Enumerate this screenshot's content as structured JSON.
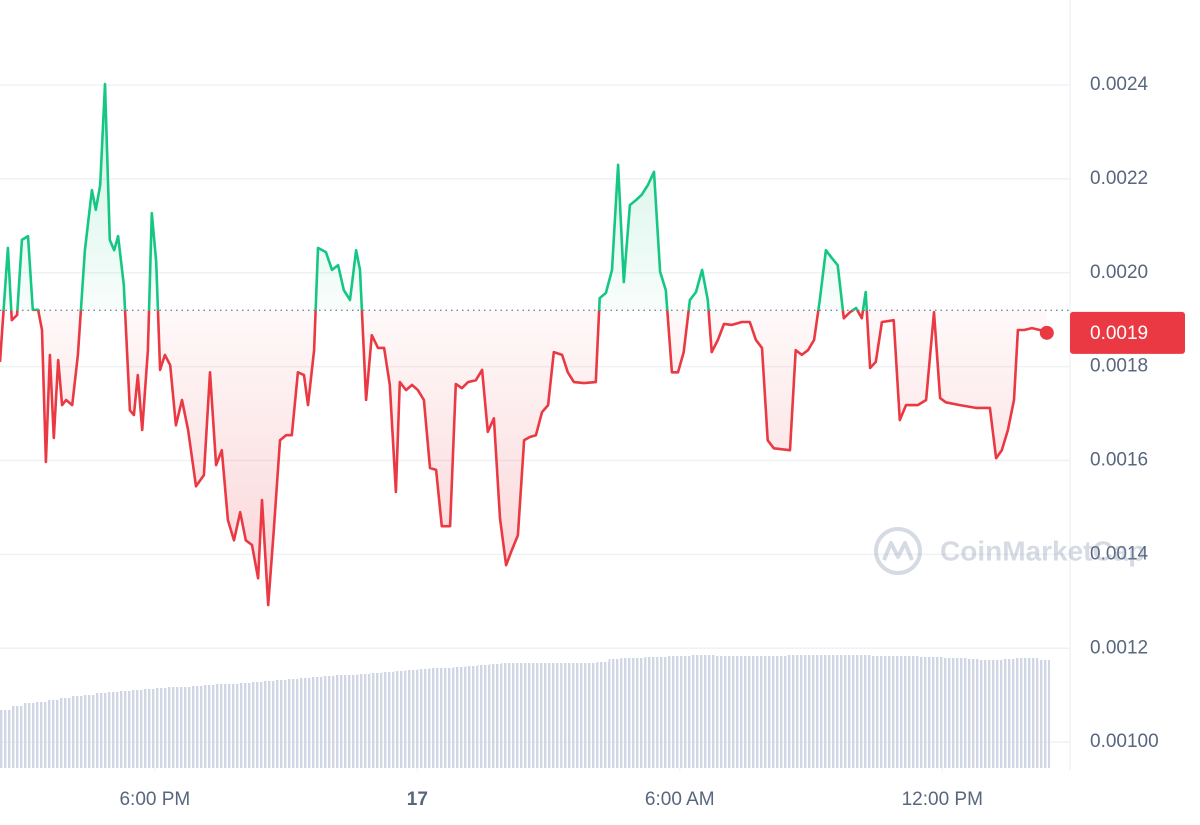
{
  "chart_data": {
    "type": "line",
    "x": [
      14.46,
      14.64,
      14.73,
      14.85,
      14.96,
      15.1,
      15.21,
      15.33,
      15.42,
      15.51,
      15.6,
      15.69,
      15.79,
      15.88,
      15.97,
      16.11,
      16.24,
      16.4,
      16.56,
      16.65,
      16.75,
      16.86,
      16.97,
      17.07,
      17.16,
      17.29,
      17.43,
      17.52,
      17.61,
      17.71,
      17.84,
      17.93,
      18.03,
      18.12,
      18.23,
      18.35,
      18.48,
      18.62,
      18.76,
      18.94,
      19.12,
      19.26,
      19.4,
      19.53,
      19.67,
      19.81,
      19.95,
      20.08,
      20.22,
      20.36,
      20.45,
      20.59,
      20.72,
      20.86,
      21.0,
      21.13,
      21.27,
      21.41,
      21.5,
      21.64,
      21.73,
      21.91,
      22.05,
      22.19,
      22.32,
      22.46,
      22.6,
      22.69,
      22.83,
      22.96,
      23.1,
      23.24,
      23.37,
      23.51,
      23.6,
      23.74,
      23.88,
      24.01,
      24.15,
      24.29,
      24.43,
      24.56,
      24.75,
      24.88,
      25.02,
      25.16,
      25.34,
      25.48,
      25.61,
      25.75,
      25.89,
      26.03,
      26.16,
      26.3,
      26.44,
      26.57,
      26.71,
      26.85,
      26.99,
      27.12,
      27.31,
      27.44,
      27.58,
      27.81,
      28.08,
      28.17,
      28.31,
      28.45,
      28.59,
      28.72,
      28.86,
      29.0,
      29.13,
      29.27,
      29.41,
      29.55,
      29.68,
      29.82,
      29.96,
      30.09,
      30.23,
      30.37,
      30.51,
      30.64,
      30.73,
      30.87,
      31.01,
      31.19,
      31.42,
      31.6,
      31.74,
      31.88,
      32.01,
      32.15,
      32.52,
      32.65,
      32.79,
      32.93,
      33.07,
      33.2,
      33.34,
      33.48,
      33.61,
      33.75,
      33.89,
      34.03,
      34.16,
      34.25,
      34.35,
      34.48,
      34.62,
      34.89,
      35.03,
      35.17,
      35.44,
      35.63,
      35.81,
      35.95,
      36.08,
      36.4,
      36.77,
      37.09,
      37.23,
      37.36,
      37.5,
      37.64,
      37.73,
      37.87,
      38.05,
      38.23,
      38.39
    ],
    "values": [
      0.00181,
      0.002053,
      0.001899,
      0.00191,
      0.00207,
      0.002078,
      0.001921,
      0.001921,
      0.001878,
      0.001597,
      0.001825,
      0.001648,
      0.001814,
      0.001718,
      0.001729,
      0.001718,
      0.001825,
      0.002048,
      0.002176,
      0.002134,
      0.002187,
      0.002402,
      0.00207,
      0.002048,
      0.002078,
      0.001974,
      0.001707,
      0.001697,
      0.001782,
      0.001665,
      0.001835,
      0.002127,
      0.002023,
      0.001793,
      0.001825,
      0.001803,
      0.001675,
      0.001729,
      0.001665,
      0.001545,
      0.001569,
      0.001788,
      0.00159,
      0.001622,
      0.001473,
      0.00143,
      0.00149,
      0.00143,
      0.00142,
      0.001349,
      0.001516,
      0.001292,
      0.001452,
      0.001643,
      0.001654,
      0.001654,
      0.001788,
      0.001782,
      0.001718,
      0.001835,
      0.002053,
      0.002044,
      0.002006,
      0.002016,
      0.001963,
      0.001942,
      0.002048,
      0.002006,
      0.001729,
      0.001867,
      0.00184,
      0.00184,
      0.001761,
      0.001533,
      0.001767,
      0.00175,
      0.001761,
      0.00175,
      0.001729,
      0.001584,
      0.00158,
      0.00146,
      0.00146,
      0.001763,
      0.001754,
      0.001767,
      0.001771,
      0.001793,
      0.001661,
      0.00169,
      0.001477,
      0.001377,
      0.001409,
      0.001441,
      0.001643,
      0.00165,
      0.001654,
      0.001703,
      0.001718,
      0.001831,
      0.001825,
      0.001788,
      0.001767,
      0.001765,
      0.001767,
      0.001946,
      0.001957,
      0.002006,
      0.00223,
      0.00198,
      0.002144,
      0.002155,
      0.002166,
      0.002187,
      0.002215,
      0.002002,
      0.001963,
      0.001788,
      0.001788,
      0.001831,
      0.001942,
      0.001959,
      0.002006,
      0.001942,
      0.001831,
      0.001857,
      0.001891,
      0.001889,
      0.001895,
      0.001895,
      0.001857,
      0.00184,
      0.001643,
      0.001626,
      0.001622,
      0.001835,
      0.001825,
      0.001835,
      0.001857,
      0.001942,
      0.002048,
      0.002031,
      0.002016,
      0.001903,
      0.001916,
      0.001925,
      0.001903,
      0.001959,
      0.001797,
      0.00181,
      0.001895,
      0.001899,
      0.001686,
      0.001718,
      0.001718,
      0.001729,
      0.001916,
      0.001733,
      0.001724,
      0.001718,
      0.001712,
      0.001712,
      0.001605,
      0.001622,
      0.001665,
      0.001729,
      0.001878,
      0.001878,
      0.001882,
      0.001878,
      0.001872
    ],
    "baseline": 0.00192,
    "up_color": "#16c784",
    "down_color": "#ea3943",
    "current_price": "0.0019",
    "xlim": [
      14.46,
      38.92
    ],
    "xticks": [
      {
        "value": 18,
        "label": "6:00 PM"
      },
      {
        "value": 24,
        "label": "17"
      },
      {
        "value": 30,
        "label": "6:00 AM"
      },
      {
        "value": 36,
        "label": "12:00 PM"
      }
    ],
    "ylim": [
      0.000945,
      0.002581
    ],
    "yticks": [
      0.0024,
      0.0022,
      {
        "value": 0.002,
        "label": "0.0020"
      },
      0.0018,
      0.0016,
      0.0014,
      0.0012,
      {
        "value": 0.001,
        "label": "0.00100"
      }
    ],
    "grid": true,
    "volume": {
      "color": "#cfd6e4",
      "values": [
        58,
        62,
        65,
        66,
        68,
        70,
        72,
        73,
        75,
        76,
        77,
        78,
        79,
        80,
        81,
        81,
        82,
        83,
        84,
        84,
        85,
        86,
        87,
        88,
        89,
        90,
        91,
        92,
        93,
        93,
        94,
        95,
        96,
        97,
        98,
        99,
        100,
        100,
        101,
        102,
        103,
        104,
        105,
        105,
        105,
        105,
        105,
        105,
        105,
        105,
        106,
        109,
        110,
        110,
        111,
        111,
        112,
        112,
        113,
        113,
        112,
        112,
        112,
        112,
        112,
        112,
        113,
        113,
        113,
        113,
        113,
        113,
        113,
        112,
        112,
        112,
        112,
        111,
        111,
        110,
        110,
        109,
        108,
        108,
        109,
        110,
        110,
        108
      ]
    },
    "watermark": "CoinMarketCap"
  }
}
